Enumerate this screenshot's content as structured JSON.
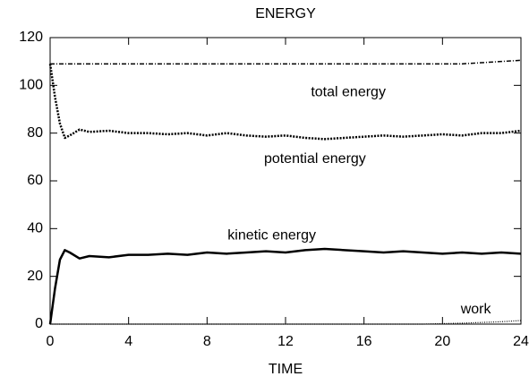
{
  "chart_data": {
    "type": "line",
    "title": "ENERGY",
    "x_label": "TIME",
    "x": [
      0,
      0.25,
      0.5,
      0.75,
      1,
      1.5,
      2,
      3,
      4,
      5,
      6,
      7,
      8,
      9,
      10,
      11,
      12,
      13,
      14,
      15,
      16,
      17,
      18,
      19,
      20,
      21,
      22,
      23,
      24
    ],
    "series": [
      {
        "name": "total energy",
        "color": "#000000",
        "style": "dashdot",
        "values": [
          109,
          109,
          109,
          109,
          109,
          109,
          109,
          109,
          109,
          109,
          109,
          109,
          109,
          109,
          109,
          109,
          109,
          109,
          109,
          109,
          109,
          109,
          109,
          109,
          109,
          109,
          109.5,
          110,
          110.5
        ]
      },
      {
        "name": "potential energy",
        "color": "#000000",
        "style": "dotted",
        "values": [
          109,
          95,
          84,
          78,
          79,
          81.5,
          80.5,
          81,
          80,
          80,
          79.5,
          80,
          79,
          80,
          79,
          78.5,
          79,
          78,
          77.5,
          78,
          78.5,
          79,
          78.5,
          79,
          79.5,
          79,
          80,
          80,
          81
        ]
      },
      {
        "name": "kinetic energy",
        "color": "#000000",
        "style": "solid",
        "values": [
          0,
          15,
          27,
          31,
          30,
          27.5,
          28.5,
          28,
          29,
          29,
          29.5,
          29,
          30,
          29.5,
          30,
          30.5,
          30,
          31,
          31.5,
          31,
          30.5,
          30,
          30.5,
          30,
          29.5,
          30,
          29.5,
          30,
          29.5
        ]
      },
      {
        "name": "work",
        "color": "#000000",
        "style": "finedot",
        "values": [
          0,
          0,
          0,
          0,
          0,
          0,
          0,
          0,
          0,
          0,
          0,
          0,
          0,
          0,
          0,
          0,
          0,
          0,
          0,
          0,
          0,
          0,
          0,
          0,
          0.2,
          0.4,
          0.7,
          1,
          1.5
        ]
      }
    ],
    "xlim": [
      0,
      24
    ],
    "xticks": [
      0,
      4,
      8,
      12,
      16,
      20,
      24
    ],
    "ylim": [
      0,
      120
    ],
    "yticks": [
      0,
      20,
      40,
      60,
      80,
      100,
      120
    ]
  }
}
